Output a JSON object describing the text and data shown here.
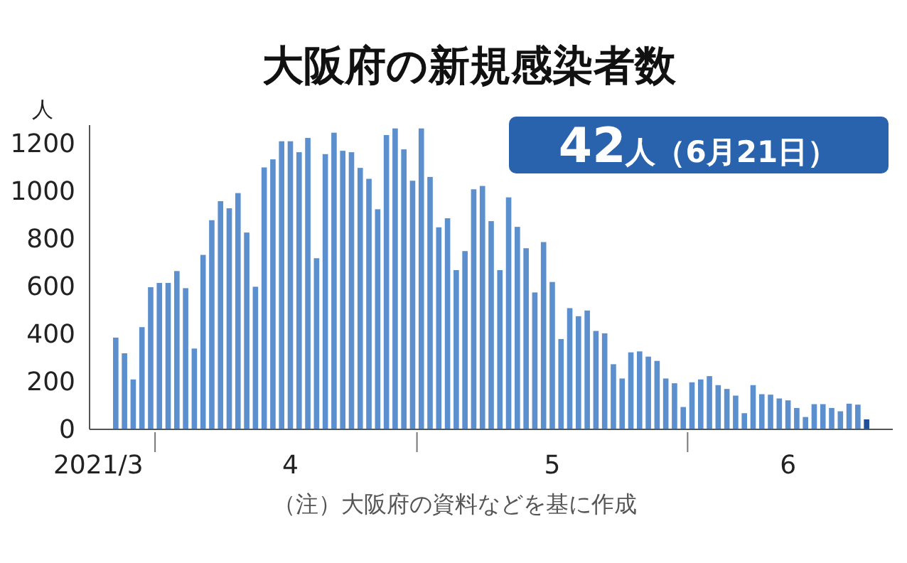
{
  "chart_data": {
    "type": "bar",
    "title": "大阪府の新規感染者数",
    "ylabel": "人",
    "annotations": [
      "42人（6月21日）",
      "（注）大阪府の資料などを基に作成"
    ],
    "x": [
      "2021-03-27",
      "2021-03-28",
      "2021-03-29",
      "2021-03-30",
      "2021-03-31",
      "2021-04-01",
      "2021-04-02",
      "2021-04-03",
      "2021-04-04",
      "2021-04-05",
      "2021-04-06",
      "2021-04-07",
      "2021-04-08",
      "2021-04-09",
      "2021-04-10",
      "2021-04-11",
      "2021-04-12",
      "2021-04-13",
      "2021-04-14",
      "2021-04-15",
      "2021-04-16",
      "2021-04-17",
      "2021-04-18",
      "2021-04-19",
      "2021-04-20",
      "2021-04-21",
      "2021-04-22",
      "2021-04-23",
      "2021-04-24",
      "2021-04-25",
      "2021-04-26",
      "2021-04-27",
      "2021-04-28",
      "2021-04-29",
      "2021-04-30",
      "2021-05-01",
      "2021-05-02",
      "2021-05-03",
      "2021-05-04",
      "2021-05-05",
      "2021-05-06",
      "2021-05-07",
      "2021-05-08",
      "2021-05-09",
      "2021-05-10",
      "2021-05-11",
      "2021-05-12",
      "2021-05-13",
      "2021-05-14",
      "2021-05-15",
      "2021-05-16",
      "2021-05-17",
      "2021-05-18",
      "2021-05-19",
      "2021-05-20",
      "2021-05-21",
      "2021-05-22",
      "2021-05-23",
      "2021-05-24",
      "2021-05-25",
      "2021-05-26",
      "2021-05-27",
      "2021-05-28",
      "2021-05-29",
      "2021-05-30",
      "2021-05-31",
      "2021-06-01",
      "2021-06-02",
      "2021-06-03",
      "2021-06-04",
      "2021-06-05",
      "2021-06-06",
      "2021-06-07",
      "2021-06-08",
      "2021-06-09",
      "2021-06-10",
      "2021-06-11",
      "2021-06-12",
      "2021-06-13",
      "2021-06-14",
      "2021-06-15",
      "2021-06-16",
      "2021-06-17",
      "2021-06-18",
      "2021-06-19",
      "2021-06-20",
      "2021-06-21"
    ],
    "values": [
      386,
      320,
      210,
      430,
      598,
      616,
      616,
      666,
      594,
      340,
      734,
      880,
      960,
      930,
      994,
      828,
      600,
      1102,
      1136,
      1212,
      1212,
      1166,
      1226,
      720,
      1158,
      1248,
      1172,
      1166,
      1100,
      1054,
      926,
      1238,
      1266,
      1178,
      1046,
      1266,
      1062,
      850,
      888,
      670,
      750,
      1010,
      1024,
      876,
      670,
      976,
      852,
      762,
      576,
      788,
      620,
      380,
      510,
      476,
      500,
      414,
      404,
      274,
      214,
      324,
      328,
      306,
      288,
      214,
      194,
      94,
      198,
      210,
      224,
      186,
      170,
      142,
      68,
      186,
      148,
      146,
      130,
      122,
      90,
      52,
      106,
      106,
      90,
      76,
      108,
      104,
      42
    ],
    "colors": [
      "#5b8fcd",
      "#5b8fcd",
      "#5b8fcd",
      "#5b8fcd",
      "#5b8fcd",
      "#5b8fcd",
      "#5b8fcd",
      "#5b8fcd",
      "#5b8fcd",
      "#5b8fcd",
      "#5b8fcd",
      "#5b8fcd",
      "#5b8fcd",
      "#5b8fcd",
      "#5b8fcd",
      "#5b8fcd",
      "#5b8fcd",
      "#5b8fcd",
      "#5b8fcd",
      "#5b8fcd",
      "#5b8fcd",
      "#5b8fcd",
      "#5b8fcd",
      "#5b8fcd",
      "#5b8fcd",
      "#5b8fcd",
      "#5b8fcd",
      "#5b8fcd",
      "#5b8fcd",
      "#5b8fcd",
      "#5b8fcd",
      "#5b8fcd",
      "#5b8fcd",
      "#5b8fcd",
      "#5b8fcd",
      "#5b8fcd",
      "#5b8fcd",
      "#5b8fcd",
      "#5b8fcd",
      "#5b8fcd",
      "#5b8fcd",
      "#5b8fcd",
      "#5b8fcd",
      "#5b8fcd",
      "#5b8fcd",
      "#5b8fcd",
      "#5b8fcd",
      "#5b8fcd",
      "#5b8fcd",
      "#5b8fcd",
      "#5b8fcd",
      "#5b8fcd",
      "#5b8fcd",
      "#5b8fcd",
      "#5b8fcd",
      "#5b8fcd",
      "#5b8fcd",
      "#5b8fcd",
      "#5b8fcd",
      "#5b8fcd",
      "#5b8fcd",
      "#5b8fcd",
      "#5b8fcd",
      "#5b8fcd",
      "#5b8fcd",
      "#5b8fcd",
      "#5b8fcd",
      "#5b8fcd",
      "#5b8fcd",
      "#5b8fcd",
      "#5b8fcd",
      "#5b8fcd",
      "#5b8fcd",
      "#5b8fcd",
      "#5b8fcd",
      "#5b8fcd",
      "#5b8fcd",
      "#5b8fcd",
      "#5b8fcd",
      "#5b8fcd",
      "#5b8fcd",
      "#5b8fcd",
      "#5b8fcd",
      "#5b8fcd",
      "#5b8fcd",
      "#5b8fcd",
      "#1f4f99"
    ],
    "xlim": [
      "2021-03-24",
      "2021-06-24"
    ],
    "xticks": [
      {
        "value": "2021-03-25",
        "label": "2021/3"
      },
      {
        "value": "2021-03-31T12:00",
        "label": null
      },
      {
        "value": "2021-04-16",
        "label": "4"
      },
      {
        "value": "2021-04-30T12:00",
        "label": null
      },
      {
        "value": "2021-05-16",
        "label": "5"
      },
      {
        "value": "2021-05-31T12:00",
        "label": null
      },
      {
        "value": "2021-06-12",
        "label": "6"
      }
    ],
    "ylim": [
      0,
      1280
    ],
    "yticks": [
      0,
      200,
      400,
      600,
      800,
      1000,
      1200
    ],
    "grid": false
  }
}
